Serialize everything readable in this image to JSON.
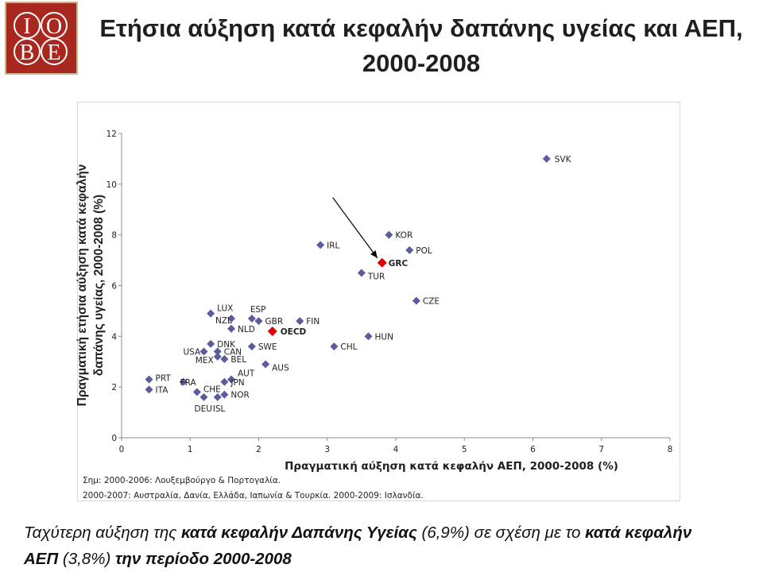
{
  "logo": {
    "letters": [
      "I",
      "O",
      "B",
      "E"
    ],
    "colors": {
      "background": "#a8281f",
      "letters": "#ffffff",
      "border": "#c9b58a"
    }
  },
  "page_title": "Ετήσια αύξηση κατά κεφαλήν δαπάνης υγείας και ΑΕΠ, 2000-2008",
  "chart_data": {
    "type": "scatter",
    "xlabel": "Πραγματική αύξηση κατά κεφαλήν ΑΕΠ, 2000-2008 (%)",
    "ylabel": "Πραγματική ετήσια αύξηση κατά κεφαλήν δαπάνης υγείας, 2000-2008 (%)",
    "xlim": [
      0,
      8
    ],
    "ylim": [
      0,
      12
    ],
    "xticks": [
      0,
      1,
      2,
      3,
      4,
      5,
      6,
      7,
      8
    ],
    "yticks": [
      0,
      2,
      4,
      6,
      8,
      10,
      12
    ],
    "grid": false,
    "colors": {
      "marker": "#5b5b9e",
      "highlight": "#e00000",
      "arrow": "#000000"
    },
    "points": [
      {
        "label": "SVK",
        "x": 6.2,
        "y": 11.0
      },
      {
        "label": "IRL",
        "x": 2.9,
        "y": 7.6
      },
      {
        "label": "KOR",
        "x": 3.9,
        "y": 8.0
      },
      {
        "label": "POL",
        "x": 4.2,
        "y": 7.4
      },
      {
        "label": "TUR",
        "x": 3.5,
        "y": 6.5
      },
      {
        "label": "CZE",
        "x": 4.3,
        "y": 5.4
      },
      {
        "label": "HUN",
        "x": 3.6,
        "y": 4.0
      },
      {
        "label": "CHL",
        "x": 3.1,
        "y": 3.6
      },
      {
        "label": "FIN",
        "x": 2.6,
        "y": 4.6
      },
      {
        "label": "LUX",
        "x": 1.3,
        "y": 4.9
      },
      {
        "label": "NZL",
        "x": 1.6,
        "y": 4.7
      },
      {
        "label": "ESP",
        "x": 1.9,
        "y": 4.7
      },
      {
        "label": "GBR",
        "x": 2.0,
        "y": 4.6
      },
      {
        "label": "NLD",
        "x": 1.6,
        "y": 4.3
      },
      {
        "label": "DNK",
        "x": 1.3,
        "y": 3.7
      },
      {
        "label": "USA",
        "x": 1.2,
        "y": 3.4
      },
      {
        "label": "CAN",
        "x": 1.4,
        "y": 3.4
      },
      {
        "label": "MEX",
        "x": 1.4,
        "y": 3.2
      },
      {
        "label": "BEL",
        "x": 1.5,
        "y": 3.1
      },
      {
        "label": "SWE",
        "x": 1.9,
        "y": 3.6
      },
      {
        "label": "AUS",
        "x": 2.1,
        "y": 2.9
      },
      {
        "label": "PRT",
        "x": 0.4,
        "y": 2.3
      },
      {
        "label": "ITA",
        "x": 0.4,
        "y": 1.9
      },
      {
        "label": "FRA",
        "x": 0.9,
        "y": 2.2
      },
      {
        "label": "AUT",
        "x": 1.6,
        "y": 2.3
      },
      {
        "label": "JPN",
        "x": 1.5,
        "y": 2.2
      },
      {
        "label": "CHE",
        "x": 1.1,
        "y": 1.8
      },
      {
        "label": "NOR",
        "x": 1.5,
        "y": 1.7
      },
      {
        "label": "DEU",
        "x": 1.2,
        "y": 1.6
      },
      {
        "label": "ISL",
        "x": 1.4,
        "y": 1.6
      }
    ],
    "highlighted": [
      {
        "label": "OECD",
        "x": 2.2,
        "y": 4.2
      },
      {
        "label": "GRC",
        "x": 3.8,
        "y": 6.9
      }
    ]
  },
  "notes": [
    "Σημ: 2000-2006: Λουξεμβούργο & Πορτογαλία.",
    "2000-2007: Αυστραλία, Δανία, Ελλάδα, Ιαπωνία & Τουρκία. 2000-2009: Ισλανδία."
  ],
  "caption": {
    "part1": "Ταχύτερη αύξηση της ",
    "part2": "κατά κεφαλήν Δαπάνης Υγείας",
    "part3": " (6,9%) σε σχέση με το ",
    "part4": "κατά κεφαλήν",
    "part5": "ΑΕΠ",
    "part6": " (3,8%) ",
    "part7": "την περίοδο 2000-2008"
  }
}
